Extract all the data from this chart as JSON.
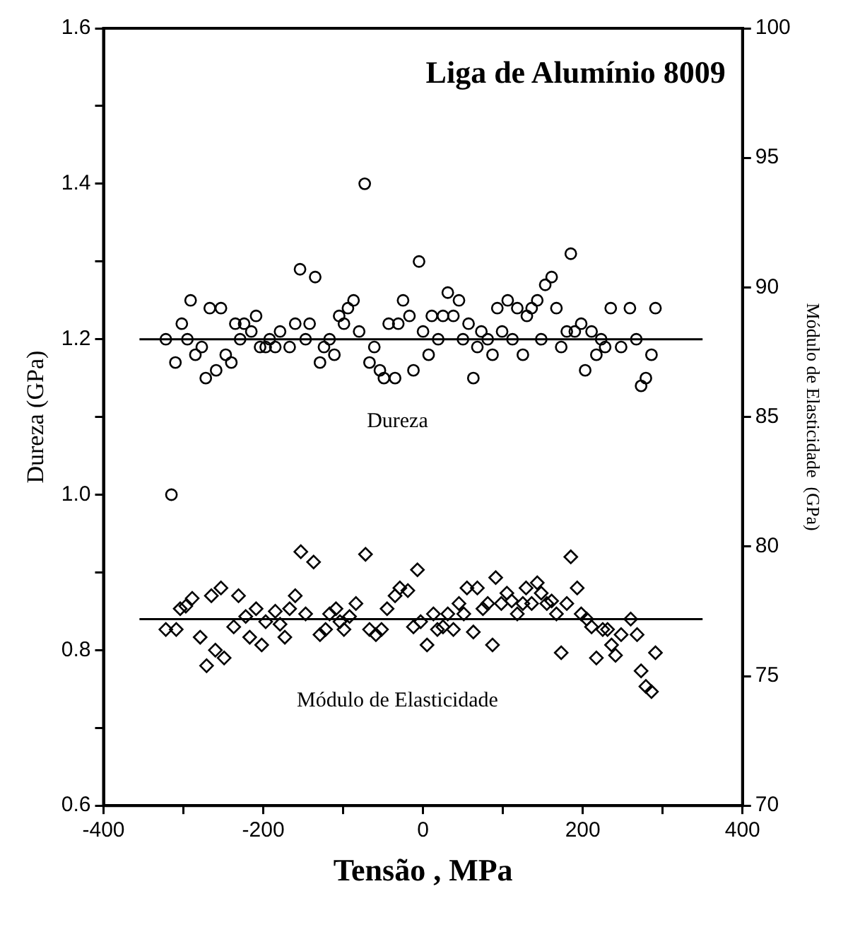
{
  "chart_data": {
    "type": "scatter",
    "title": "Liga de Alumínio 8009",
    "xlabel": "Tensão , MPa",
    "ylabel": "Dureza (GPa)",
    "y2label": "Módulo de Elasticidade  (GPa)",
    "xlim": [
      -400,
      400
    ],
    "xticks": [
      -400,
      {
        "value": -300,
        "label": null
      },
      -200,
      {
        "value": -100,
        "label": null
      },
      0,
      {
        "value": 100,
        "label": null
      },
      200,
      {
        "value": 300,
        "label": null
      },
      400
    ],
    "ylim": [
      0.6,
      1.6
    ],
    "yticks": [
      0.6,
      {
        "value": 0.7,
        "label": null
      },
      0.8,
      {
        "value": 0.9,
        "label": null
      },
      {
        "value": 1,
        "label": "1.0"
      },
      {
        "value": 1.1,
        "label": null
      },
      1.2,
      {
        "value": 1.3,
        "label": null
      },
      1.4,
      {
        "value": 1.5,
        "label": null
      },
      1.6
    ],
    "y2lim": [
      70,
      100
    ],
    "y2ticks": [
      70,
      75,
      80,
      85,
      90,
      95,
      100
    ],
    "grid": false,
    "legend": false,
    "annotations": [
      "Dureza",
      "Módulo de Elasticidade"
    ],
    "series": [
      {
        "type": "scatter",
        "marker": "circle",
        "color": "#000000",
        "x": [
          -322,
          -310,
          -302,
          -295,
          -291,
          -285,
          -277,
          -272,
          -267,
          -259,
          -253,
          -247,
          -240,
          -235,
          -229,
          -224,
          -215,
          -209,
          -204,
          -197,
          -192,
          -185,
          -179,
          -167,
          -160,
          -154,
          -147,
          -142,
          -135,
          -129,
          -124,
          -117,
          -111,
          -105,
          -99,
          -94,
          -87,
          -80,
          -73,
          -67,
          -61,
          -54,
          -49,
          -43,
          -35,
          -31,
          -25,
          -17,
          -12,
          -5,
          0,
          7,
          -315,
          11,
          19,
          25,
          31,
          38,
          45,
          50,
          57,
          63,
          68,
          73,
          81,
          87,
          93,
          99,
          106,
          112,
          118,
          125,
          130,
          136,
          143,
          148,
          153,
          161,
          167,
          173,
          180,
          185,
          190,
          198,
          203,
          211,
          217,
          223,
          228,
          235,
          248,
          259,
          267,
          273,
          279,
          286,
          291
        ],
        "values": [
          1.2,
          1.17,
          1.22,
          1.2,
          1.25,
          1.18,
          1.19,
          1.15,
          1.24,
          1.16,
          1.24,
          1.18,
          1.17,
          1.22,
          1.2,
          1.22,
          1.21,
          1.23,
          1.19,
          1.19,
          1.2,
          1.19,
          1.21,
          1.19,
          1.22,
          1.29,
          1.2,
          1.22,
          1.28,
          1.17,
          1.19,
          1.2,
          1.18,
          1.23,
          1.22,
          1.24,
          1.25,
          1.21,
          1.4,
          1.17,
          1.19,
          1.16,
          1.15,
          1.22,
          1.15,
          1.22,
          1.25,
          1.23,
          1.16,
          1.3,
          1.21,
          1.18,
          1.0,
          1.23,
          1.2,
          1.23,
          1.26,
          1.23,
          1.25,
          1.2,
          1.22,
          1.15,
          1.19,
          1.21,
          1.2,
          1.18,
          1.24,
          1.21,
          1.25,
          1.2,
          1.24,
          1.18,
          1.23,
          1.24,
          1.25,
          1.2,
          1.27,
          1.28,
          1.24,
          1.19,
          1.21,
          1.31,
          1.21,
          1.22,
          1.16,
          1.21,
          1.18,
          1.2,
          1.19,
          1.24,
          1.19,
          1.24,
          1.2,
          1.14,
          1.15,
          1.18,
          1.24
        ]
      },
      {
        "type": "scatter",
        "marker": "diamond",
        "color": "#000000",
        "axis": "y2",
        "x": [
          -322,
          -309,
          -304,
          -297,
          -289,
          -279,
          -271,
          -265,
          -260,
          -253,
          -249,
          -237,
          -231,
          -222,
          -217,
          -209,
          -202,
          -197,
          -185,
          -179,
          -173,
          -167,
          -160,
          -153,
          -147,
          -137,
          -129,
          -122,
          -117,
          -109,
          -104,
          -99,
          -92,
          -84,
          -72,
          -67,
          -59,
          -52,
          -45,
          -35,
          -29,
          -19,
          -12,
          -7,
          -3,
          5,
          13,
          18,
          25,
          31,
          38,
          45,
          51,
          55,
          63,
          68,
          75,
          81,
          87,
          91,
          98,
          105,
          111,
          118,
          125,
          129,
          136,
          143,
          148,
          155,
          161,
          167,
          173,
          180,
          185,
          193,
          198,
          205,
          211,
          217,
          225,
          231,
          236,
          241,
          248,
          260,
          268,
          273,
          279,
          286,
          291
        ],
        "values": [
          76.8,
          76.8,
          77.6,
          77.7,
          78.0,
          76.5,
          75.4,
          78.1,
          76.0,
          78.4,
          75.7,
          76.9,
          78.1,
          77.3,
          76.5,
          77.6,
          76.2,
          77.1,
          77.5,
          77.0,
          76.5,
          77.6,
          78.1,
          79.8,
          77.4,
          79.4,
          76.6,
          76.8,
          77.4,
          77.6,
          77.1,
          76.8,
          77.3,
          77.8,
          79.7,
          76.8,
          76.6,
          76.8,
          77.6,
          78.1,
          78.4,
          78.3,
          76.9,
          79.1,
          77.1,
          76.2,
          77.4,
          76.8,
          76.9,
          77.4,
          76.8,
          77.8,
          77.4,
          78.4,
          76.7,
          78.4,
          77.6,
          77.8,
          76.2,
          78.8,
          77.8,
          78.2,
          77.9,
          77.4,
          77.8,
          78.4,
          77.8,
          78.6,
          78.2,
          77.8,
          77.9,
          77.4,
          75.9,
          77.8,
          79.6,
          78.4,
          77.4,
          77.2,
          76.9,
          75.7,
          76.8,
          76.8,
          76.2,
          75.8,
          76.6,
          77.2,
          76.6,
          75.2,
          74.6,
          74.4,
          75.9
        ]
      },
      {
        "type": "line",
        "marker": "none",
        "line_style": "solid",
        "color": "#000000",
        "x": [
          -355,
          350
        ],
        "values": [
          1.2,
          1.2
        ]
      },
      {
        "type": "line",
        "marker": "none",
        "line_style": "solid",
        "color": "#000000",
        "axis": "y2",
        "x": [
          -355,
          350
        ],
        "values": [
          77.2,
          77.2
        ]
      }
    ]
  }
}
